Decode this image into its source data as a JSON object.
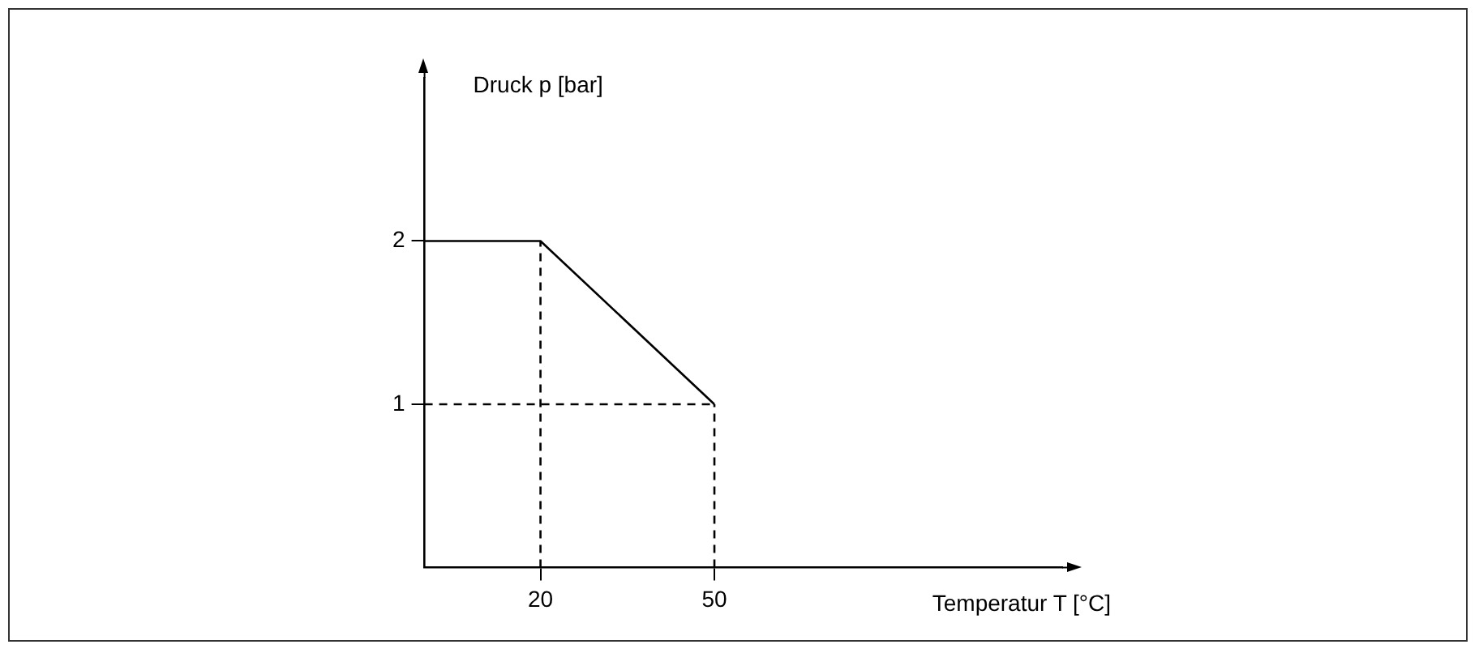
{
  "chart_data": {
    "type": "line",
    "xlabel": "Temperatur T [°C]",
    "ylabel": "Druck p [bar]",
    "series": [
      {
        "color": "#000000",
        "x": [
          0,
          20,
          50
        ],
        "values": [
          2,
          2,
          1
        ],
        "line_style": "solid"
      },
      {
        "color": "#000000",
        "x": [
          20,
          20
        ],
        "values": [
          0,
          2
        ],
        "line_style": "dashed"
      },
      {
        "color": "#000000",
        "x": [
          0,
          50
        ],
        "values": [
          1,
          1
        ],
        "line_style": "dashed"
      },
      {
        "color": "#000000",
        "x": [
          50,
          50
        ],
        "values": [
          0,
          1
        ],
        "line_style": "dashed"
      }
    ],
    "xlim": [
      0,
      110
    ],
    "xticks": [
      20,
      50
    ],
    "ylim": [
      0,
      3
    ],
    "yticks": [
      1,
      2
    ],
    "grid": false,
    "legend": false,
    "marker": "none"
  }
}
